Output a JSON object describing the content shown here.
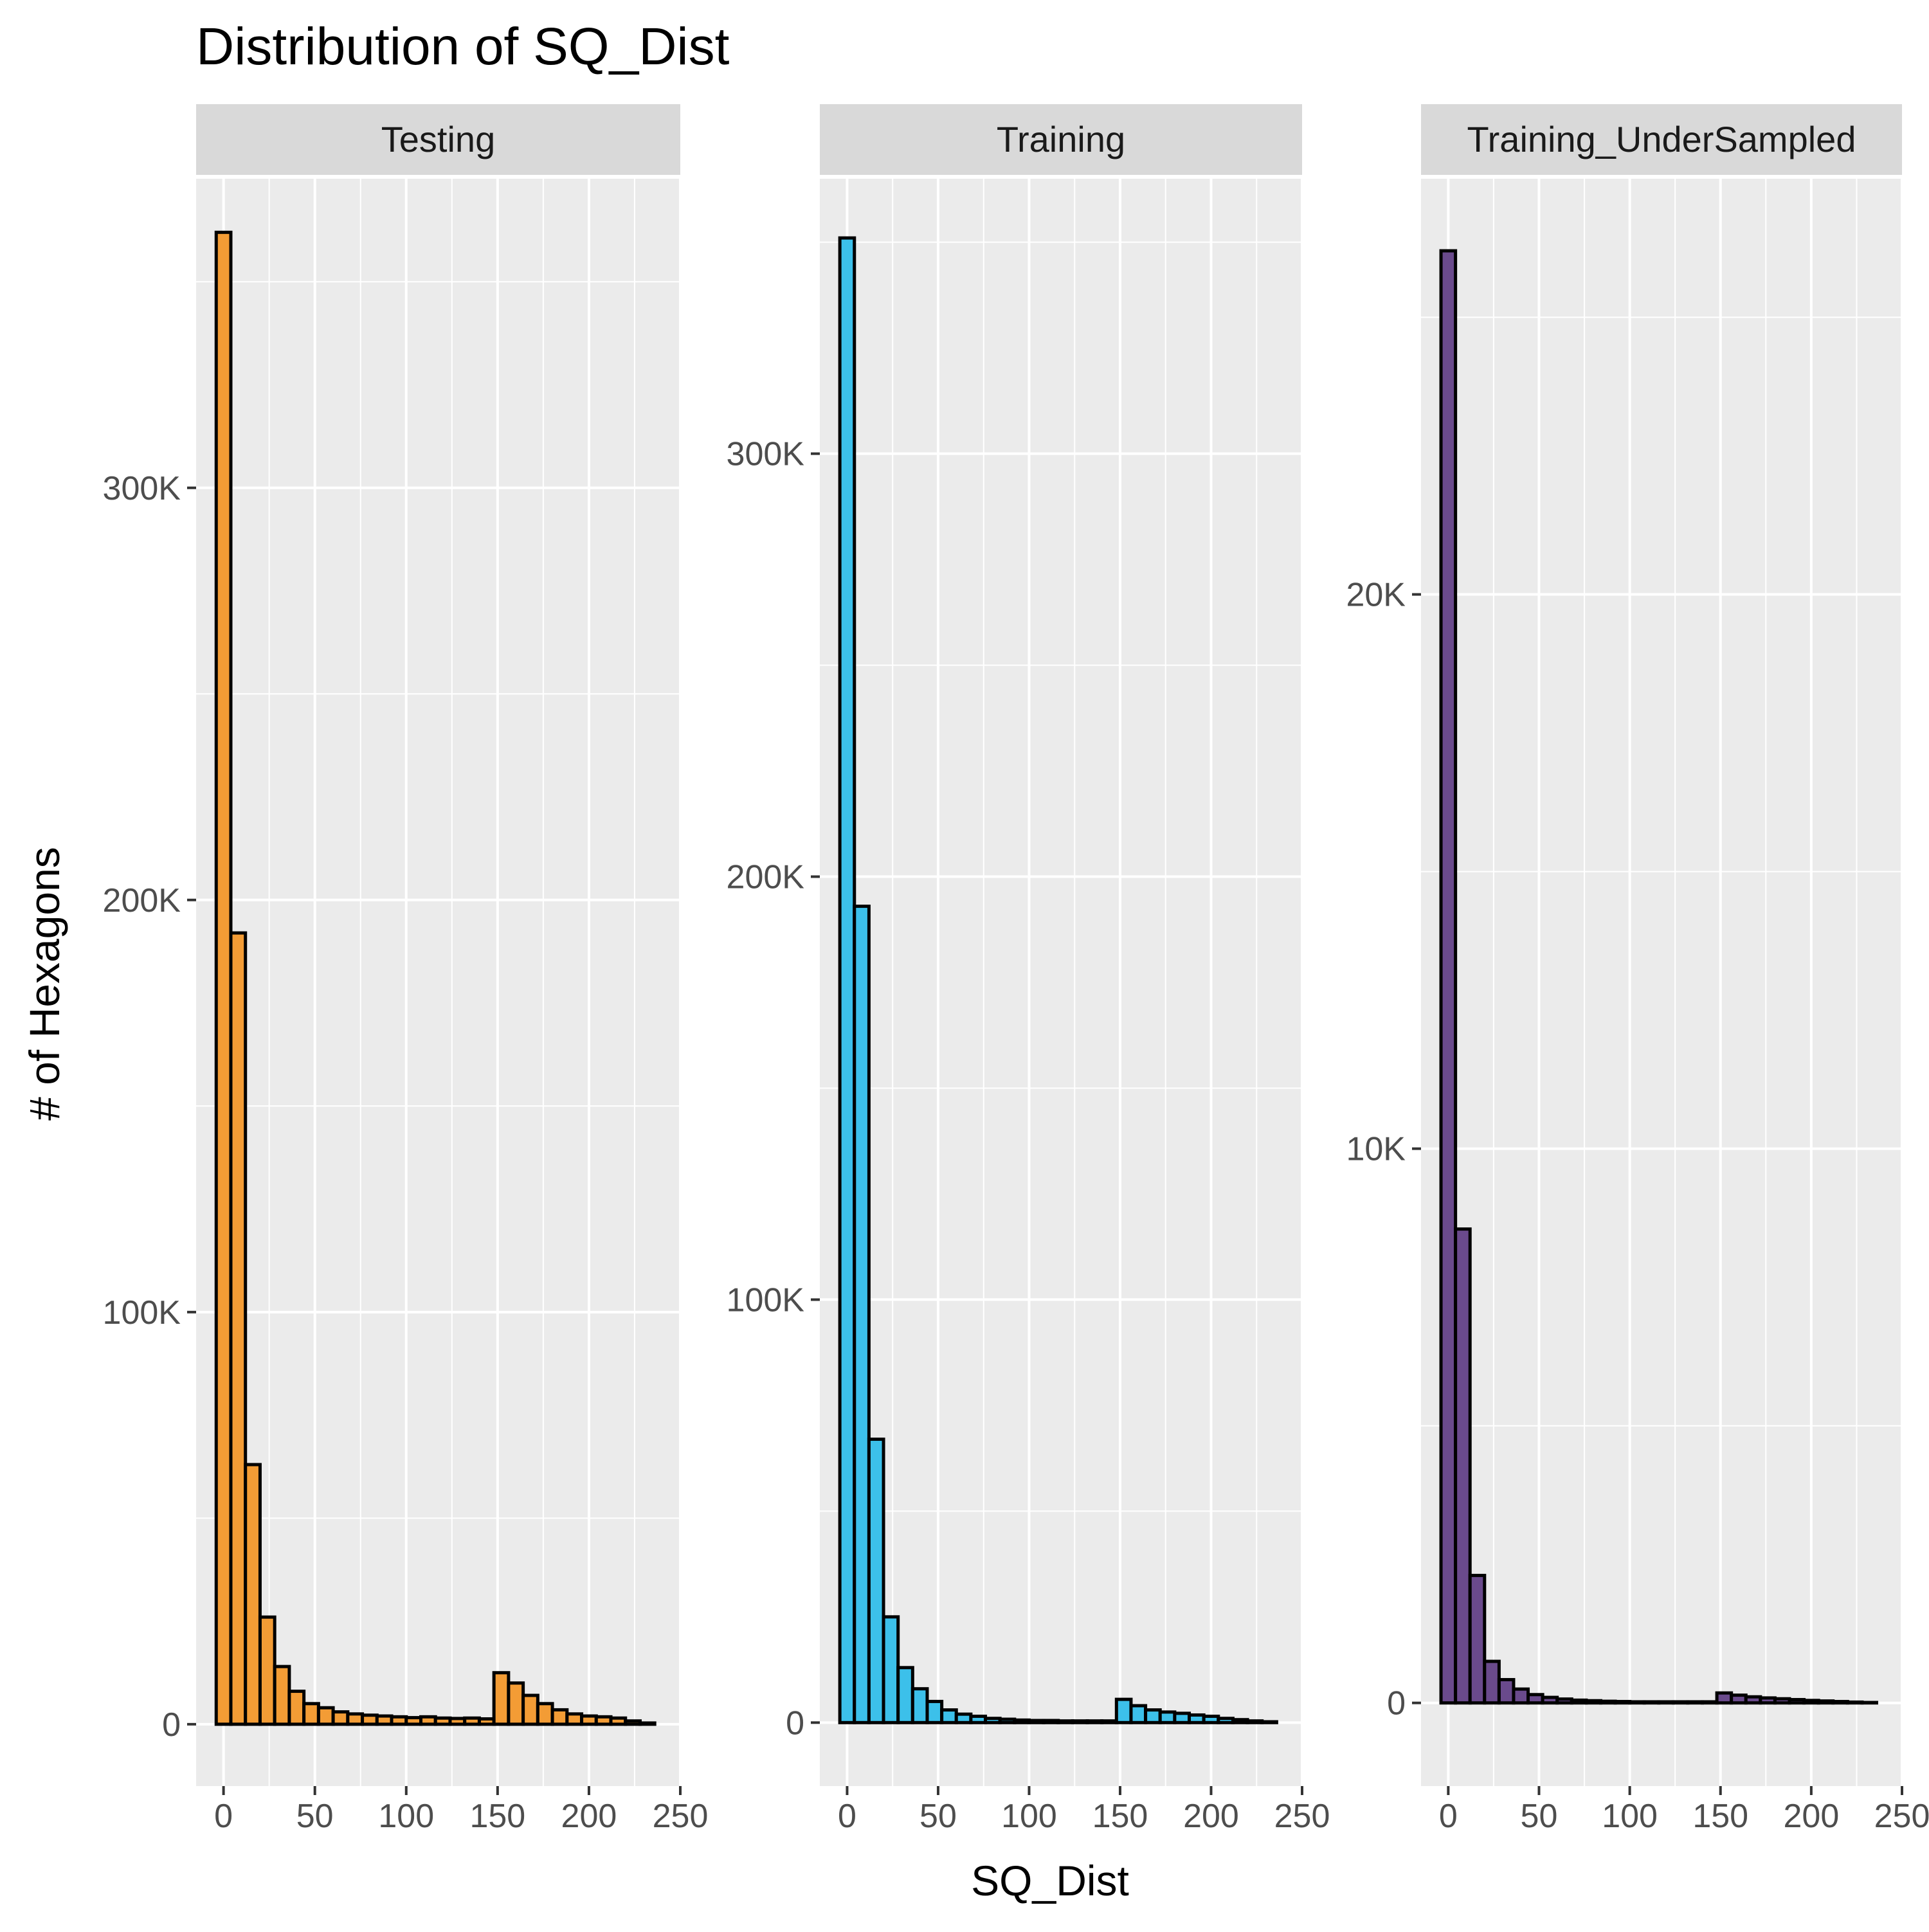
{
  "chart_data": {
    "type": "bar",
    "title": "Distribution of SQ_Dist",
    "xlabel": "SQ_Dist",
    "ylabel": "# of Hexagons",
    "grid": true,
    "bin_width": 8,
    "x_ticks": [
      0,
      50,
      100,
      150,
      200,
      250
    ],
    "x_tick_labels": [
      "0",
      "50",
      "100",
      "150",
      "200",
      "250"
    ],
    "xlim": [
      -15,
      250
    ],
    "bar_outline_color": "#000000",
    "panel_background": "#ebebeb",
    "strip_background": "#d9d9d9",
    "facets": [
      {
        "name": "Testing",
        "color": "#f39c35",
        "ylim": [
          -15000,
          375000
        ],
        "y_ticks": [
          0,
          100000,
          200000,
          300000
        ],
        "y_tick_labels": [
          "0",
          "100K",
          "200K",
          "300K"
        ],
        "bins": [
          {
            "x0": -4,
            "value": 362000
          },
          {
            "x0": 4,
            "value": 192000
          },
          {
            "x0": 12,
            "value": 63000
          },
          {
            "x0": 20,
            "value": 26000
          },
          {
            "x0": 28,
            "value": 14000
          },
          {
            "x0": 36,
            "value": 8000
          },
          {
            "x0": 44,
            "value": 5000
          },
          {
            "x0": 52,
            "value": 4000
          },
          {
            "x0": 60,
            "value": 3000
          },
          {
            "x0": 68,
            "value": 2500
          },
          {
            "x0": 76,
            "value": 2200
          },
          {
            "x0": 84,
            "value": 2000
          },
          {
            "x0": 92,
            "value": 1800
          },
          {
            "x0": 100,
            "value": 1600
          },
          {
            "x0": 108,
            "value": 1800
          },
          {
            "x0": 116,
            "value": 1500
          },
          {
            "x0": 124,
            "value": 1400
          },
          {
            "x0": 132,
            "value": 1500
          },
          {
            "x0": 140,
            "value": 1300
          },
          {
            "x0": 148,
            "value": 12500
          },
          {
            "x0": 156,
            "value": 10000
          },
          {
            "x0": 164,
            "value": 7000
          },
          {
            "x0": 172,
            "value": 5000
          },
          {
            "x0": 180,
            "value": 3500
          },
          {
            "x0": 188,
            "value": 2500
          },
          {
            "x0": 196,
            "value": 2000
          },
          {
            "x0": 204,
            "value": 1800
          },
          {
            "x0": 212,
            "value": 1500
          },
          {
            "x0": 220,
            "value": 800
          },
          {
            "x0": 228,
            "value": 300
          }
        ]
      },
      {
        "name": "Training",
        "color": "#3cc0ea",
        "ylim": [
          -15000,
          365000
        ],
        "y_ticks": [
          0,
          100000,
          200000,
          300000
        ],
        "y_tick_labels": [
          "0",
          "100K",
          "200K",
          "300K"
        ],
        "bins": [
          {
            "x0": -4,
            "value": 351000
          },
          {
            "x0": 4,
            "value": 193000
          },
          {
            "x0": 12,
            "value": 67000
          },
          {
            "x0": 20,
            "value": 25000
          },
          {
            "x0": 28,
            "value": 13000
          },
          {
            "x0": 36,
            "value": 8000
          },
          {
            "x0": 44,
            "value": 5000
          },
          {
            "x0": 52,
            "value": 3000
          },
          {
            "x0": 60,
            "value": 2000
          },
          {
            "x0": 68,
            "value": 1500
          },
          {
            "x0": 76,
            "value": 1000
          },
          {
            "x0": 84,
            "value": 800
          },
          {
            "x0": 92,
            "value": 600
          },
          {
            "x0": 100,
            "value": 500
          },
          {
            "x0": 108,
            "value": 500
          },
          {
            "x0": 116,
            "value": 400
          },
          {
            "x0": 124,
            "value": 400
          },
          {
            "x0": 132,
            "value": 400
          },
          {
            "x0": 140,
            "value": 400
          },
          {
            "x0": 148,
            "value": 5500
          },
          {
            "x0": 156,
            "value": 4000
          },
          {
            "x0": 164,
            "value": 3000
          },
          {
            "x0": 172,
            "value": 2500
          },
          {
            "x0": 180,
            "value": 2200
          },
          {
            "x0": 188,
            "value": 1800
          },
          {
            "x0": 196,
            "value": 1500
          },
          {
            "x0": 204,
            "value": 1000
          },
          {
            "x0": 212,
            "value": 700
          },
          {
            "x0": 220,
            "value": 400
          },
          {
            "x0": 228,
            "value": 200
          }
        ]
      },
      {
        "name": "Training_UnderSampled",
        "color": "#6a4a8c",
        "ylim": [
          -1500,
          27500
        ],
        "y_ticks": [
          0,
          10000,
          20000
        ],
        "y_tick_labels": [
          "0",
          "10K",
          "20K"
        ],
        "bins": [
          {
            "x0": -4,
            "value": 26200
          },
          {
            "x0": 4,
            "value": 8550
          },
          {
            "x0": 12,
            "value": 2300
          },
          {
            "x0": 20,
            "value": 750
          },
          {
            "x0": 28,
            "value": 420
          },
          {
            "x0": 36,
            "value": 250
          },
          {
            "x0": 44,
            "value": 150
          },
          {
            "x0": 52,
            "value": 100
          },
          {
            "x0": 60,
            "value": 70
          },
          {
            "x0": 68,
            "value": 50
          },
          {
            "x0": 76,
            "value": 40
          },
          {
            "x0": 84,
            "value": 30
          },
          {
            "x0": 92,
            "value": 25
          },
          {
            "x0": 100,
            "value": 20
          },
          {
            "x0": 108,
            "value": 20
          },
          {
            "x0": 116,
            "value": 20
          },
          {
            "x0": 124,
            "value": 20
          },
          {
            "x0": 132,
            "value": 20
          },
          {
            "x0": 140,
            "value": 20
          },
          {
            "x0": 148,
            "value": 180
          },
          {
            "x0": 156,
            "value": 140
          },
          {
            "x0": 164,
            "value": 110
          },
          {
            "x0": 172,
            "value": 90
          },
          {
            "x0": 180,
            "value": 75
          },
          {
            "x0": 188,
            "value": 60
          },
          {
            "x0": 196,
            "value": 45
          },
          {
            "x0": 204,
            "value": 35
          },
          {
            "x0": 212,
            "value": 25
          },
          {
            "x0": 220,
            "value": 15
          },
          {
            "x0": 228,
            "value": 8
          }
        ]
      }
    ]
  }
}
